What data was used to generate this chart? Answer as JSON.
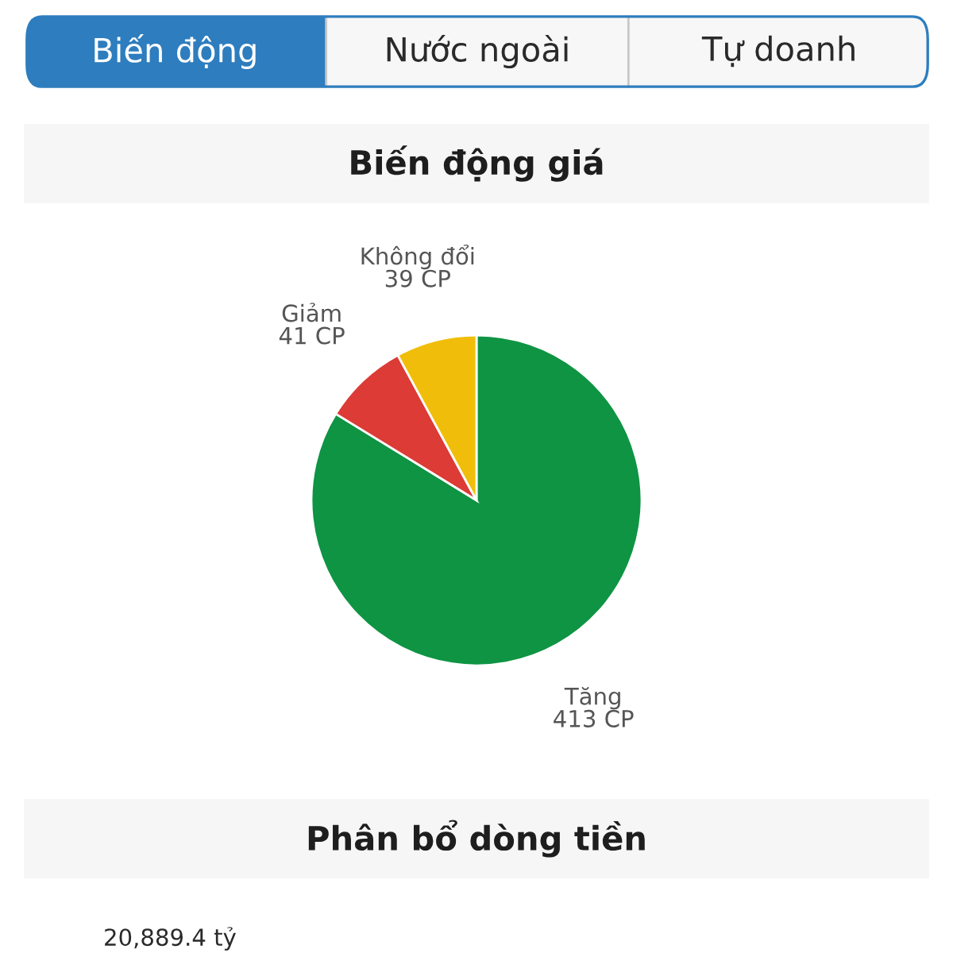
{
  "chart_data": [
    {
      "type": "other",
      "annotations": [
        "Biến động",
        "Nước ngoài",
        "Tự doanh"
      ],
      "colors": [
        "#2e7dbe",
        "#f7f7f7",
        "#f7f7f7"
      ]
    },
    {
      "type": "pie",
      "title": "Biến động giá",
      "categories": [
        "Tăng",
        "Giảm",
        "Không đổi"
      ],
      "values": [
        413,
        41,
        39
      ],
      "colors": [
        "#0e9443",
        "#dc3b36",
        "#f0be0a"
      ],
      "value_labels": [
        "413 CP",
        "41 CP",
        "39 CP"
      ]
    },
    {
      "type": "other",
      "title": "Phân bổ dòng tiền",
      "annotations": [
        "20,889.4 tỷ"
      ]
    }
  ]
}
